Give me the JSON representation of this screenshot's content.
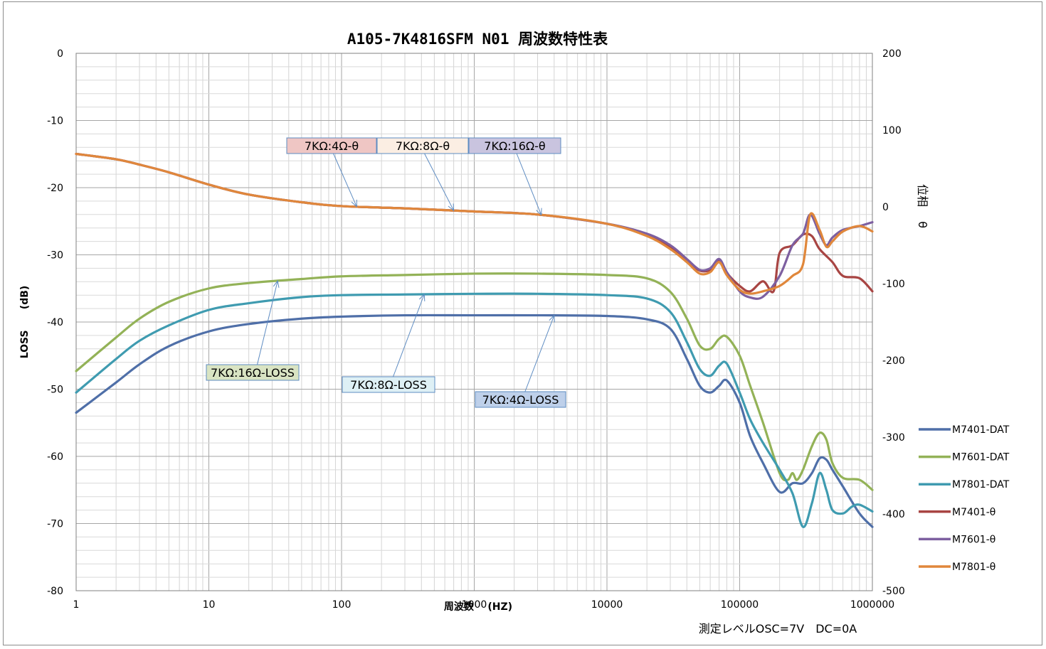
{
  "chart_data": {
    "type": "line",
    "title": "A105-7K4816SFM N01 周波数特性表",
    "xlabel": "周波数    (HZ)",
    "ylabel": "LOSS      (dB)",
    "y2label": "位相    θ",
    "x_scale": "log",
    "xlim": [
      1,
      1000000
    ],
    "ylim": [
      -80,
      0
    ],
    "y2lim": [
      -500,
      200
    ],
    "x_ticks": [
      "1",
      "10",
      "100",
      "1000",
      "10000",
      "100000",
      "1000000"
    ],
    "y_ticks": [
      "0",
      "-10",
      "-20",
      "-30",
      "-40",
      "-50",
      "-60",
      "-70",
      "-80"
    ],
    "y2_ticks": [
      "200",
      "100",
      "0",
      "-100",
      "-200",
      "-300",
      "-400",
      "-500"
    ],
    "grid": true,
    "legend_position": "right",
    "note": "測定レベルOSC=7V　DC=0A",
    "series": [
      {
        "name": "M7401-DAT",
        "axis": "left",
        "color": "#4f6fa8",
        "x": [
          1,
          2,
          3,
          5,
          10,
          20,
          50,
          100,
          300,
          1000,
          3000,
          10000,
          20000,
          30000,
          40000,
          50000,
          60000,
          70000,
          80000,
          100000,
          120000,
          150000,
          200000,
          250000,
          300000,
          350000,
          400000,
          450000,
          500000,
          600000,
          800000,
          1000000
        ],
        "y": [
          -53.5,
          -49.0,
          -46.3,
          -43.6,
          -41.4,
          -40.3,
          -39.5,
          -39.2,
          -39.0,
          -39.0,
          -39.0,
          -39.1,
          -39.6,
          -41.0,
          -45.5,
          -49.5,
          -50.5,
          -49.5,
          -48.7,
          -52.0,
          -57.0,
          -61.0,
          -65.3,
          -64.0,
          -64.0,
          -62.5,
          -60.3,
          -60.5,
          -62.0,
          -64.5,
          -68.5,
          -70.5
        ]
      },
      {
        "name": "M7601-DAT",
        "axis": "left",
        "color": "#93b257",
        "x": [
          1,
          2,
          3,
          5,
          10,
          20,
          50,
          100,
          300,
          1000,
          3000,
          10000,
          20000,
          30000,
          40000,
          50000,
          60000,
          70000,
          80000,
          100000,
          120000,
          150000,
          200000,
          230000,
          250000,
          270000,
          300000,
          350000,
          400000,
          450000,
          500000,
          600000,
          800000,
          1000000
        ],
        "y": [
          -47.3,
          -42.3,
          -39.5,
          -37.0,
          -35.0,
          -34.2,
          -33.6,
          -33.2,
          -33.0,
          -32.8,
          -32.8,
          -33.0,
          -33.5,
          -35.5,
          -39.5,
          -43.5,
          -44.0,
          -42.5,
          -42.2,
          -45.0,
          -49.5,
          -55.0,
          -62.5,
          -63.5,
          -62.5,
          -63.5,
          -62.0,
          -58.5,
          -56.5,
          -57.5,
          -61.0,
          -63.2,
          -63.5,
          -65.0
        ]
      },
      {
        "name": "M7801-DAT",
        "axis": "left",
        "color": "#3f9bb0",
        "x": [
          1,
          2,
          3,
          5,
          10,
          20,
          50,
          100,
          300,
          1000,
          3000,
          10000,
          20000,
          30000,
          40000,
          50000,
          60000,
          70000,
          80000,
          100000,
          120000,
          150000,
          200000,
          250000,
          300000,
          350000,
          400000,
          450000,
          500000,
          600000,
          700000,
          800000,
          1000000
        ],
        "y": [
          -50.5,
          -45.5,
          -42.8,
          -40.5,
          -38.2,
          -37.2,
          -36.3,
          -36.0,
          -35.9,
          -35.8,
          -35.8,
          -36.0,
          -36.5,
          -38.5,
          -43.0,
          -47.0,
          -48.0,
          -46.5,
          -46.2,
          -50.5,
          -54.5,
          -58.0,
          -62.0,
          -65.5,
          -70.5,
          -67.0,
          -62.5,
          -65.0,
          -68.0,
          -68.5,
          -67.5,
          -67.2,
          -68.2
        ]
      },
      {
        "name": "M7401-θ",
        "axis": "right",
        "color": "#a84543",
        "x": [
          1,
          2,
          3,
          5,
          10,
          20,
          50,
          100,
          300,
          1000,
          3000,
          10000,
          20000,
          30000,
          40000,
          50000,
          60000,
          70000,
          80000,
          100000,
          120000,
          150000,
          180000,
          200000,
          250000,
          300000,
          350000,
          400000,
          500000,
          600000,
          800000,
          1000000
        ],
        "y": [
          69,
          62,
          55,
          45,
          29,
          16,
          6,
          1,
          -2,
          -6,
          -10,
          -22,
          -37,
          -52,
          -70,
          -83,
          -82,
          -70,
          -86,
          -103,
          -110,
          -97,
          -110,
          -60,
          -50,
          -36,
          -38,
          -55,
          -72,
          -90,
          -93,
          -110
        ]
      },
      {
        "name": "M7601-θ",
        "axis": "right",
        "color": "#7d5fa0",
        "x": [
          1,
          2,
          3,
          5,
          10,
          20,
          50,
          100,
          300,
          1000,
          3000,
          10000,
          20000,
          30000,
          40000,
          50000,
          60000,
          70000,
          80000,
          100000,
          120000,
          150000,
          200000,
          250000,
          300000,
          340000,
          400000,
          450000,
          500000,
          600000,
          800000,
          1000000
        ],
        "y": [
          69,
          62,
          55,
          45,
          29,
          16,
          6,
          1,
          -2,
          -6,
          -10,
          -22,
          -35,
          -50,
          -68,
          -82,
          -80,
          -68,
          -85,
          -110,
          -118,
          -117,
          -90,
          -50,
          -35,
          -10,
          -35,
          -50,
          -40,
          -30,
          -25,
          -20
        ]
      },
      {
        "name": "M7801-θ",
        "axis": "right",
        "color": "#e0873b",
        "x": [
          1,
          2,
          3,
          5,
          10,
          20,
          50,
          100,
          300,
          1000,
          3000,
          10000,
          20000,
          30000,
          40000,
          50000,
          60000,
          70000,
          80000,
          100000,
          120000,
          150000,
          200000,
          250000,
          300000,
          340000,
          400000,
          450000,
          500000,
          600000,
          800000,
          1000000
        ],
        "y": [
          69,
          62,
          55,
          45,
          29,
          16,
          6,
          1,
          -2,
          -6,
          -10,
          -22,
          -38,
          -55,
          -72,
          -87,
          -85,
          -72,
          -89,
          -108,
          -113,
          -110,
          -103,
          -90,
          -75,
          -10,
          -30,
          -52,
          -45,
          -32,
          -25,
          -32
        ]
      }
    ],
    "annotations": [
      {
        "text": "7KΩ:4Ω-θ",
        "target_series": "M7401-θ",
        "target_x": 130,
        "fill": "#efc6c4",
        "stroke": "#5e8cc2"
      },
      {
        "text": "7KΩ:8Ω-θ",
        "target_series": "M7601-θ",
        "target_x": 700,
        "fill": "#fbeee3",
        "stroke": "#5e8cc2"
      },
      {
        "text": "7KΩ:16Ω-θ",
        "target_series": "M7801-θ",
        "target_x": 3200,
        "fill": "#c9c4df",
        "stroke": "#5e8cc2"
      },
      {
        "text": "7KΩ:16Ω-LOSS",
        "target_series": "M7601-DAT",
        "target_x": 33,
        "fill": "#d9e4c3",
        "stroke": "#5e8cc2"
      },
      {
        "text": "7KΩ:8Ω-LOSS",
        "target_series": "M7801-DAT",
        "target_x": 420,
        "fill": "#def0f5",
        "stroke": "#5e8cc2"
      },
      {
        "text": "7KΩ:4Ω-LOSS",
        "target_series": "M7401-DAT",
        "target_x": 4000,
        "fill": "#bed0ea",
        "stroke": "#5e8cc2"
      }
    ]
  }
}
